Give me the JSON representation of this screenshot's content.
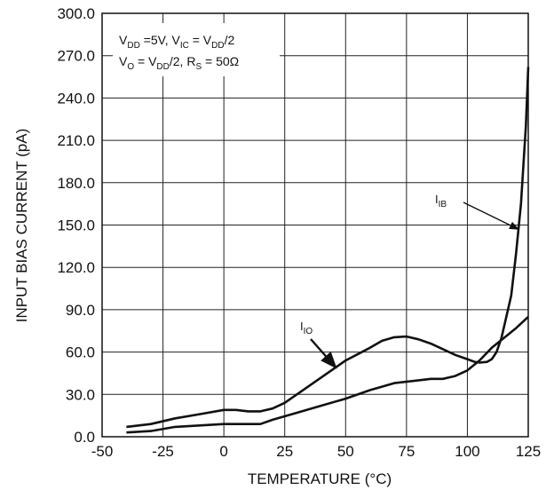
{
  "chart_data": {
    "type": "line",
    "xlabel": "TEMPERATURE (°C)",
    "ylabel": "INPUT BIAS CURRENT (pA)",
    "xlim": [
      -50,
      125
    ],
    "ylim": [
      0,
      300
    ],
    "grid": true,
    "x_ticks": [
      "-50",
      "-25",
      "0",
      "25",
      "50",
      "75",
      "100",
      "125"
    ],
    "y_ticks": [
      "0.0",
      "30.0",
      "60.0",
      "90.0",
      "120.0",
      "150.0",
      "180.0",
      "210.0",
      "240.0",
      "270.0",
      "300.0"
    ],
    "conditions": {
      "line1": {
        "a": "V",
        "a_sub": "DD",
        "b": " =5V, V",
        "b_sub": "IC",
        "c": " = V",
        "c_sub": "DD",
        "d": "/2"
      },
      "line2": {
        "a": "V",
        "a_sub": "O",
        "b": " = V",
        "b_sub": "DD",
        "c": "/2, R",
        "c_sub": "S",
        "d": " = 50Ω"
      }
    },
    "series": [
      {
        "name": "I_IB",
        "label_main": "I",
        "label_sub": "IB",
        "points": [
          [
            -40,
            7
          ],
          [
            -30,
            9
          ],
          [
            -20,
            13
          ],
          [
            -10,
            16
          ],
          [
            0,
            19
          ],
          [
            5,
            19
          ],
          [
            10,
            18
          ],
          [
            15,
            18
          ],
          [
            20,
            20
          ],
          [
            25,
            24
          ],
          [
            30,
            30
          ],
          [
            40,
            42
          ],
          [
            50,
            54
          ],
          [
            60,
            63
          ],
          [
            65,
            68
          ],
          [
            70,
            70.5
          ],
          [
            75,
            71
          ],
          [
            80,
            69
          ],
          [
            85,
            66
          ],
          [
            90,
            62
          ],
          [
            95,
            58
          ],
          [
            100,
            55
          ],
          [
            103,
            53
          ],
          [
            105,
            52.5
          ],
          [
            108,
            53
          ],
          [
            110,
            55
          ],
          [
            112,
            60
          ],
          [
            114,
            70
          ],
          [
            116,
            85
          ],
          [
            118,
            100
          ],
          [
            120,
            130
          ],
          [
            122,
            165
          ],
          [
            124,
            220
          ],
          [
            125,
            262
          ]
        ]
      },
      {
        "name": "I_IO",
        "label_main": "I",
        "label_sub": "IO",
        "points": [
          [
            -40,
            3
          ],
          [
            -30,
            4
          ],
          [
            -20,
            7
          ],
          [
            -10,
            8
          ],
          [
            0,
            9
          ],
          [
            10,
            9
          ],
          [
            15,
            9
          ],
          [
            20,
            12
          ],
          [
            30,
            17
          ],
          [
            40,
            22
          ],
          [
            50,
            27
          ],
          [
            60,
            33
          ],
          [
            70,
            38
          ],
          [
            80,
            40
          ],
          [
            85,
            41
          ],
          [
            90,
            41
          ],
          [
            95,
            43
          ],
          [
            100,
            47
          ],
          [
            105,
            54
          ],
          [
            110,
            63
          ],
          [
            115,
            70
          ],
          [
            120,
            77
          ],
          [
            125,
            85
          ]
        ]
      }
    ]
  }
}
